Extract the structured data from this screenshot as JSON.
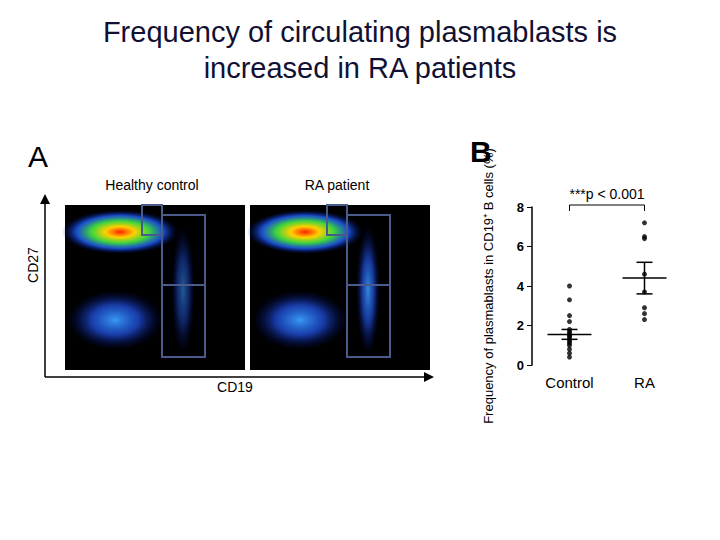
{
  "panel_a": {
    "label": "A",
    "plots": [
      "Healthy control",
      "RA patient"
    ],
    "x_label": "CD19",
    "y_label": "CD27"
  },
  "chart_data": {
    "type": "scatter",
    "title": "Frequency of circulating plasmablasts is increased in RA patients",
    "panel_label": "B",
    "y_label": "Frequency of plasmablasts in CD19⁺ B cells (%)",
    "categories": [
      "Control",
      "RA"
    ],
    "points": [
      [
        4.0,
        3.3,
        2.5,
        2.2,
        1.8,
        1.7,
        1.6,
        1.5,
        1.5,
        1.4,
        1.3,
        1.2,
        1.1,
        1.0,
        0.8,
        0.6,
        0.4
      ],
      [
        7.2,
        6.5,
        6.4,
        4.6,
        3.7,
        2.9,
        2.6,
        2.3
      ]
    ],
    "mean": [
      1.55,
      4.4
    ],
    "sem": [
      0.25,
      0.8
    ],
    "annotations": [
      "***p < 0.001"
    ],
    "color": "#000000",
    "marker": "circle",
    "ylim": [
      0,
      8
    ],
    "yticks": [
      0,
      2,
      4,
      6,
      8
    ],
    "grid": false
  }
}
